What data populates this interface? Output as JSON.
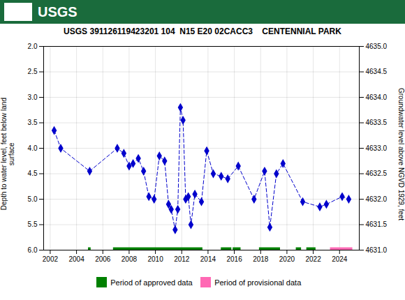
{
  "chart_data": {
    "type": "line",
    "title": "USGS 391126119423201 104  N15 E20 02CACC3    CENTENNIAL PARK",
    "annotations": [
      "USGS"
    ],
    "ylabel": "Depth to water level, feet below land\nsurface",
    "y2label": "Groundwater level above NGVD 1929, feet",
    "x": [
      2002.3,
      2002.8,
      2005.0,
      2007.1,
      2007.6,
      2008.0,
      2008.3,
      2008.7,
      2009.1,
      2009.5,
      2009.9,
      2010.3,
      2010.7,
      2011.0,
      2011.2,
      2011.5,
      2011.7,
      2011.9,
      2012.1,
      2012.3,
      2012.5,
      2012.7,
      2013.0,
      2013.5,
      2013.9,
      2014.4,
      2015.0,
      2015.5,
      2016.3,
      2017.5,
      2018.3,
      2018.7,
      2019.2,
      2019.7,
      2021.2,
      2022.5,
      2023.0,
      2024.2,
      2024.7
    ],
    "values": [
      3.65,
      4.0,
      4.45,
      4.0,
      4.1,
      4.35,
      4.3,
      4.2,
      4.45,
      4.95,
      5.0,
      4.15,
      4.25,
      5.1,
      5.2,
      5.6,
      5.2,
      3.2,
      3.45,
      5.0,
      4.95,
      5.5,
      4.9,
      5.05,
      4.05,
      4.5,
      4.55,
      4.6,
      4.35,
      5.0,
      4.45,
      5.55,
      4.5,
      4.3,
      5.05,
      5.15,
      5.1,
      4.95,
      5.0
    ],
    "color": "#0000CC",
    "marker": "diamond",
    "line_style": "dashed",
    "xlim": [
      2001.5,
      2025.5
    ],
    "xticks": [
      2002,
      2004,
      2006,
      2008,
      2010,
      2012,
      2014,
      2016,
      2018,
      2020,
      2022,
      2024
    ],
    "ylim": [
      6.0,
      2.0
    ],
    "yticks": [
      {
        "value": 2.0,
        "label": "2.0"
      },
      2.5,
      {
        "value": 3.0,
        "label": "3.0"
      },
      3.5,
      {
        "value": 4.0,
        "label": "4.0"
      },
      4.5,
      {
        "value": 5.0,
        "label": "5.0"
      },
      5.5,
      {
        "value": 6.0,
        "label": "6.0"
      }
    ],
    "y2lim": [
      4631.0,
      4635.0
    ],
    "y2ticks": [
      {
        "value": 4635.0,
        "label": "4635.0"
      },
      4634.5,
      {
        "value": 4634.0,
        "label": "4634.0"
      },
      4633.5,
      {
        "value": 4633.0,
        "label": "4633.0"
      },
      4632.5,
      {
        "value": 4632.0,
        "label": "4632.0"
      },
      4631.5,
      {
        "value": 4631.0,
        "label": "4631.0"
      }
    ],
    "grid": true,
    "legend": "bottom",
    "periods": [
      {
        "name": "Period of approved data",
        "color": "#008000",
        "y": 6.0,
        "ranges": [
          [
            2004.9,
            2005.1
          ],
          [
            2006.8,
            2013.6
          ],
          [
            2015.0,
            2015.8
          ],
          [
            2015.9,
            2016.5
          ],
          [
            2017.9,
            2019.5
          ],
          [
            2020.7,
            2021.1
          ],
          [
            2021.5,
            2022.2
          ]
        ]
      },
      {
        "name": "Period of provisional data",
        "color": "#FF69B4",
        "y": 6.0,
        "ranges": [
          [
            2023.3,
            2025.0
          ]
        ]
      }
    ]
  }
}
